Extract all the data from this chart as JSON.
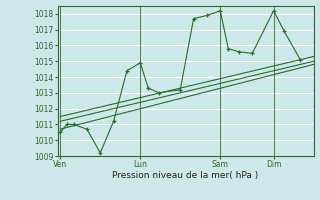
{
  "xlabel": "Pression niveau de la mer( hPa )",
  "background_color": "#cce8e8",
  "grid_color": "#ffffff",
  "line_color": "#2d6a2d",
  "ylim": [
    1009,
    1018.5
  ],
  "yticks": [
    1009,
    1010,
    1011,
    1012,
    1013,
    1014,
    1015,
    1016,
    1017,
    1018
  ],
  "day_labels": [
    "Ven",
    "Lun",
    "Sam",
    "Dim"
  ],
  "day_positions": [
    0.0,
    3.0,
    6.0,
    8.0
  ],
  "series1_x": [
    0.0,
    0.25,
    0.5,
    1.0,
    1.5,
    2.0,
    2.5,
    3.0,
    3.3,
    3.7,
    4.5,
    5.0,
    5.5,
    6.0,
    6.3,
    6.7,
    7.2,
    8.0,
    8.4,
    9.0
  ],
  "series1_y": [
    1010.5,
    1011.0,
    1011.0,
    1010.7,
    1009.2,
    1011.2,
    1014.4,
    1014.9,
    1013.3,
    1013.0,
    1013.2,
    1017.7,
    1017.9,
    1018.2,
    1015.8,
    1015.6,
    1015.5,
    1018.2,
    1016.9,
    1015.1
  ],
  "trend1_x": [
    0.0,
    9.5
  ],
  "trend1_y": [
    1011.2,
    1015.0
  ],
  "trend2_x": [
    0.0,
    9.5
  ],
  "trend2_y": [
    1011.5,
    1015.3
  ],
  "trend3_x": [
    0.0,
    9.5
  ],
  "trend3_y": [
    1010.7,
    1014.8
  ],
  "xlim": [
    -0.1,
    9.5
  ],
  "marker": "+"
}
